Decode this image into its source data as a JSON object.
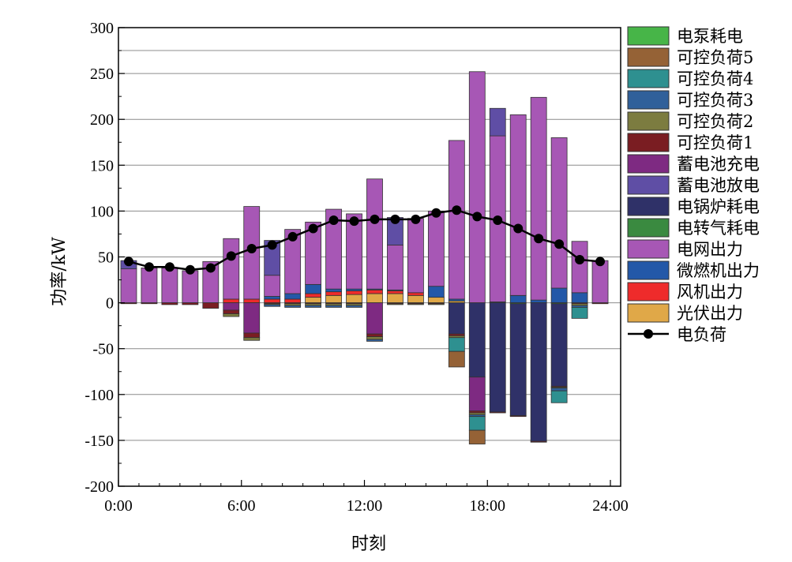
{
  "chart_data": {
    "type": "bar",
    "xlabel": "时刻",
    "ylabel": "功率/kW",
    "ylim": [
      -200,
      300
    ],
    "xlim": [
      0,
      24.5
    ],
    "yticks": [
      300,
      250,
      200,
      150,
      100,
      50,
      0,
      -50,
      -100,
      -150,
      -200
    ],
    "xticks": [
      {
        "value": 0,
        "label": "0:00"
      },
      {
        "value": 6,
        "label": "6:00"
      },
      {
        "value": 12,
        "label": "12:00"
      },
      {
        "value": 18,
        "label": "18:00"
      },
      {
        "value": 24,
        "label": "24:00"
      }
    ],
    "grid": "horizontal",
    "legend_position": "outside-right",
    "hours": [
      1,
      2,
      3,
      4,
      5,
      6,
      7,
      8,
      9,
      10,
      11,
      12,
      13,
      14,
      15,
      16,
      17,
      18,
      19,
      20,
      21,
      22,
      23,
      24
    ],
    "series": [
      {
        "name": "光伏出力",
        "color": "#E0A848",
        "sign": 1,
        "values": [
          0,
          0,
          0,
          0,
          0,
          0,
          0,
          0,
          0,
          6,
          8,
          9,
          10,
          10,
          8,
          6,
          2,
          0,
          0,
          0,
          0,
          0,
          0,
          0
        ]
      },
      {
        "name": "风机出力",
        "color": "#EE2B2B",
        "sign": 1,
        "values": [
          0,
          0,
          0,
          0,
          0,
          4,
          4,
          4,
          4,
          4,
          4,
          4,
          4,
          3,
          3,
          0,
          0,
          0,
          0,
          0,
          0,
          0,
          0,
          0
        ]
      },
      {
        "name": "微燃机出力",
        "color": "#2358A8",
        "sign": 1,
        "values": [
          0,
          0,
          0,
          0,
          0,
          0,
          0,
          3,
          6,
          10,
          3,
          2,
          1,
          1,
          0,
          12,
          2,
          0,
          1,
          8,
          3,
          16,
          11,
          0
        ]
      },
      {
        "name": "电转气耗电",
        "color": "#3A8A40",
        "sign": -1,
        "values": [
          0,
          0,
          0,
          0,
          0,
          0,
          0,
          0,
          0,
          0,
          0,
          0,
          0,
          0,
          0,
          0,
          0,
          0,
          0,
          1,
          0,
          1,
          0,
          0
        ]
      },
      {
        "name": "电网出力",
        "color": "#A757B5",
        "sign": 1,
        "values": [
          37,
          38,
          38,
          35,
          45,
          66,
          101,
          23,
          70,
          68,
          87,
          82,
          120,
          49,
          81,
          82,
          173,
          252,
          181,
          197,
          221,
          164,
          56,
          46
        ]
      },
      {
        "name": "电锅炉耗电",
        "color": "#2F3168",
        "sign": -1,
        "values": [
          0,
          0,
          0,
          0,
          0,
          0,
          0,
          0,
          0,
          0,
          0,
          0,
          0,
          0,
          0,
          0,
          34,
          81,
          119,
          122,
          151,
          90,
          0,
          0
        ]
      },
      {
        "name": "蓄电池放电",
        "color": "#5F4EA5",
        "sign": 1,
        "values": [
          9,
          0,
          0,
          0,
          0,
          0,
          0,
          38,
          0,
          0,
          0,
          0,
          0,
          30,
          0,
          0,
          0,
          0,
          30,
          0,
          0,
          0,
          0,
          0
        ]
      },
      {
        "name": "蓄电池充电",
        "color": "#7E2A82",
        "sign": -1,
        "values": [
          0,
          0,
          0,
          0,
          0,
          8,
          33,
          0,
          0,
          0,
          0,
          0,
          34,
          0,
          0,
          0,
          0,
          37,
          0,
          0,
          0,
          0,
          0,
          0
        ]
      },
      {
        "name": "可控负荷1",
        "color": "#7A1D22",
        "sign": -1,
        "values": [
          1,
          1,
          2,
          2,
          6,
          4,
          5,
          1,
          1,
          1,
          1,
          1,
          3,
          1,
          1,
          1,
          2,
          2,
          1,
          1,
          1,
          1,
          1,
          1
        ]
      },
      {
        "name": "可控负荷2",
        "color": "#7C7C40",
        "sign": -1,
        "values": [
          0,
          0,
          0,
          0,
          0,
          3,
          3,
          1,
          2,
          2,
          2,
          2,
          3,
          1,
          1,
          1,
          2,
          2,
          0,
          0,
          0,
          1,
          2,
          0
        ]
      },
      {
        "name": "可控负荷3",
        "color": "#30609A",
        "sign": -1,
        "values": [
          0,
          0,
          0,
          0,
          0,
          0,
          0,
          2,
          2,
          2,
          2,
          2,
          2,
          0,
          0,
          0,
          0,
          2,
          0,
          0,
          0,
          3,
          2,
          0
        ]
      },
      {
        "name": "可控负荷4",
        "color": "#2E9090",
        "sign": -1,
        "values": [
          0,
          0,
          0,
          0,
          0,
          0,
          0,
          0,
          0,
          0,
          0,
          0,
          0,
          0,
          0,
          0,
          15,
          15,
          0,
          0,
          0,
          13,
          12,
          0
        ]
      },
      {
        "name": "可控负荷5",
        "color": "#956236",
        "sign": -1,
        "values": [
          0,
          0,
          0,
          0,
          0,
          0,
          0,
          0,
          0,
          0,
          0,
          0,
          0,
          0,
          0,
          0,
          17,
          15,
          0,
          0,
          0,
          0,
          0,
          0
        ]
      },
      {
        "name": "电泵耗电",
        "color": "#47B548",
        "sign": -1,
        "values": [
          0,
          0,
          0,
          0,
          0,
          0,
          0,
          0,
          0,
          0,
          0,
          0,
          0,
          0,
          0,
          0,
          0,
          0,
          0,
          0,
          0,
          0,
          0,
          0
        ]
      }
    ],
    "load_line": {
      "name": "电负荷",
      "color": "#000000",
      "values": [
        45,
        39,
        39,
        36,
        38,
        51,
        59,
        63,
        72,
        81,
        90,
        89,
        91,
        91,
        91,
        98,
        101,
        94,
        90,
        81,
        70,
        64,
        47,
        45
      ]
    },
    "legend_order": [
      "电泵耗电",
      "可控负荷5",
      "可控负荷4",
      "可控负荷3",
      "可控负荷2",
      "可控负荷1",
      "蓄电池充电",
      "蓄电池放电",
      "电锅炉耗电",
      "电转气耗电",
      "电网出力",
      "微燃机出力",
      "风机出力",
      "光伏出力",
      "电负荷"
    ]
  }
}
